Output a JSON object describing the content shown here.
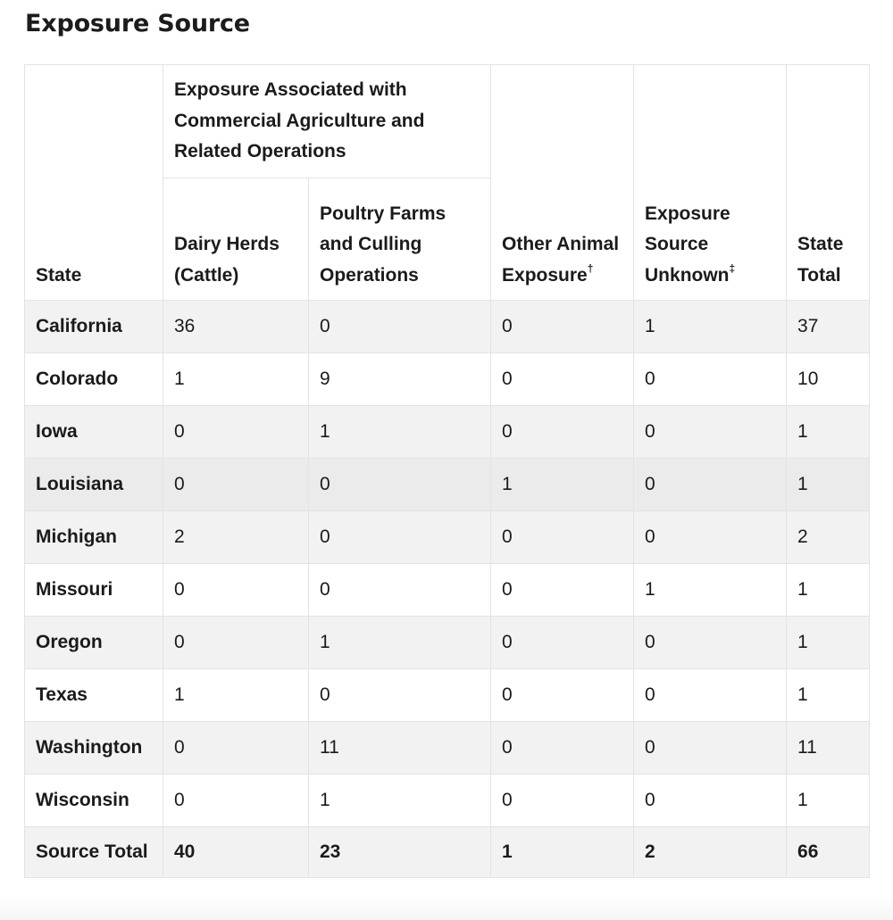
{
  "page_title": "Exposure Source",
  "table": {
    "headers": {
      "state": "State",
      "group": "Exposure Associated with Commercial Agriculture and Related Operations",
      "dairy": "Dairy Herds (Cattle)",
      "poultry": "Poultry Farms and Culling Operations",
      "other": "Other Animal Exposure",
      "other_mark": "†",
      "unknown": "Exposure Source Unknown",
      "unknown_mark": "‡",
      "total": "State Total"
    },
    "rows": [
      {
        "state": "California",
        "dairy": "36",
        "poultry": "0",
        "other": "0",
        "unknown": "1",
        "total": "37"
      },
      {
        "state": "Colorado",
        "dairy": "1",
        "poultry": "9",
        "other": "0",
        "unknown": "0",
        "total": "10"
      },
      {
        "state": "Iowa",
        "dairy": "0",
        "poultry": "1",
        "other": "0",
        "unknown": "0",
        "total": "1"
      },
      {
        "state": "Louisiana",
        "dairy": "0",
        "poultry": "0",
        "other": "1",
        "unknown": "0",
        "total": "1"
      },
      {
        "state": "Michigan",
        "dairy": "2",
        "poultry": "0",
        "other": "0",
        "unknown": "0",
        "total": "2"
      },
      {
        "state": "Missouri",
        "dairy": "0",
        "poultry": "0",
        "other": "0",
        "unknown": "1",
        "total": "1"
      },
      {
        "state": "Oregon",
        "dairy": "0",
        "poultry": "1",
        "other": "0",
        "unknown": "0",
        "total": "1"
      },
      {
        "state": "Texas",
        "dairy": "1",
        "poultry": "0",
        "other": "0",
        "unknown": "0",
        "total": "1"
      },
      {
        "state": "Washington",
        "dairy": "0",
        "poultry": "11",
        "other": "0",
        "unknown": "0",
        "total": "11"
      },
      {
        "state": "Wisconsin",
        "dairy": "0",
        "poultry": "1",
        "other": "0",
        "unknown": "0",
        "total": "1"
      }
    ],
    "footer": {
      "state": "Source Total",
      "dairy": "40",
      "poultry": "23",
      "other": "1",
      "unknown": "2",
      "total": "66"
    }
  }
}
